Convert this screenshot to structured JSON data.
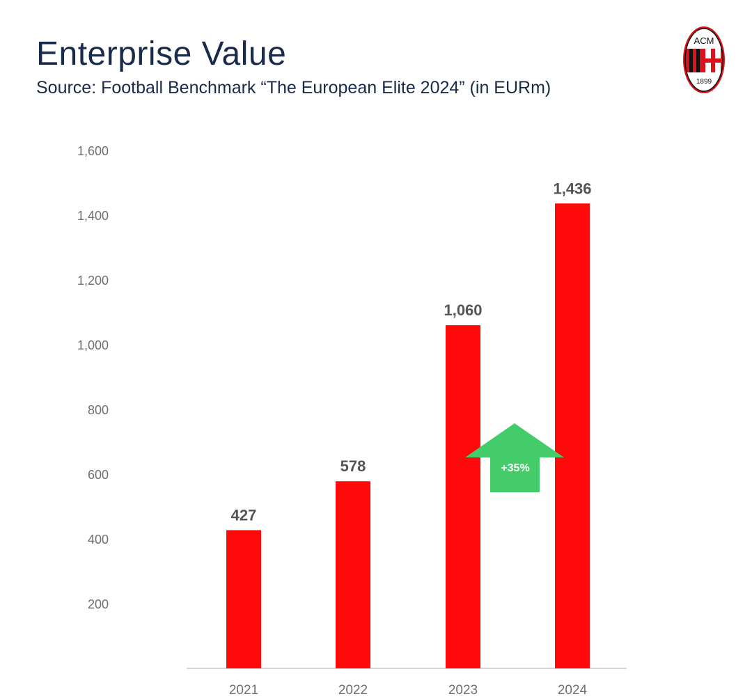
{
  "header": {
    "title": "Enterprise Value",
    "subtitle": "Source: Football Benchmark “The European Elite 2024” (in EURm)"
  },
  "logo": {
    "icon": "ac-milan-crest-icon",
    "text_top": "ACM",
    "text_bottom": "1899"
  },
  "colors": {
    "bar": "#ff0a0a",
    "arrow": "#45cc6a",
    "title": "#1a2b4a",
    "axis_text": "#6f6f6f",
    "data_label": "#555555"
  },
  "chart_data": {
    "type": "bar",
    "categories": [
      "2021",
      "2022",
      "2023",
      "2024"
    ],
    "values": [
      427,
      578,
      1060,
      1436
    ],
    "data_labels": [
      "427",
      "578",
      "1,060",
      "1,436"
    ],
    "title": "Enterprise Value",
    "subtitle": "Source: Football Benchmark “The European Elite 2024” (in EURm)",
    "xlabel": "",
    "ylabel": "",
    "ylim": [
      0,
      1600
    ],
    "yticks": [
      200,
      400,
      600,
      800,
      1000,
      1200,
      1400,
      1600
    ],
    "ytick_labels": [
      "200",
      "400",
      "600",
      "800",
      "1,000",
      "1,200",
      "1,400",
      "1,600"
    ],
    "grid": false,
    "legend": "none",
    "annotation": {
      "text": "+35%",
      "shape": "up-arrow",
      "between": [
        "2023",
        "2024"
      ]
    }
  }
}
